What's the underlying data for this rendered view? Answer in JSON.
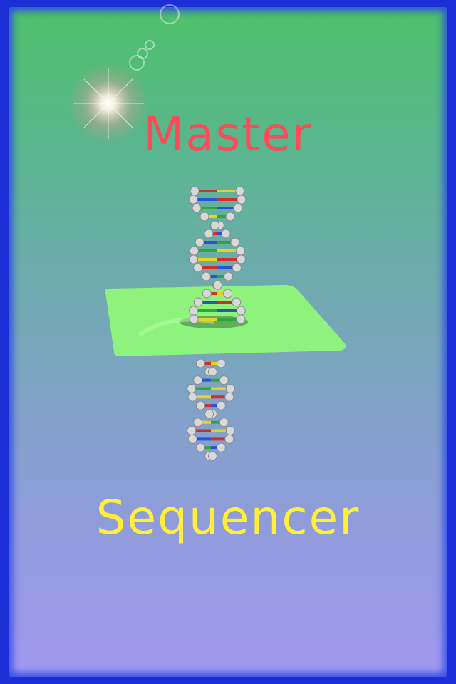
{
  "title": {
    "top": "Master",
    "bottom": "Sequencer"
  },
  "colors": {
    "border": "#1c2fd6",
    "title_top": "#ff4a5a",
    "title_bottom": "#ffee3a",
    "plane": "#8ff57a"
  },
  "icons": [
    "dna-helix-icon",
    "lens-flare-icon"
  ]
}
